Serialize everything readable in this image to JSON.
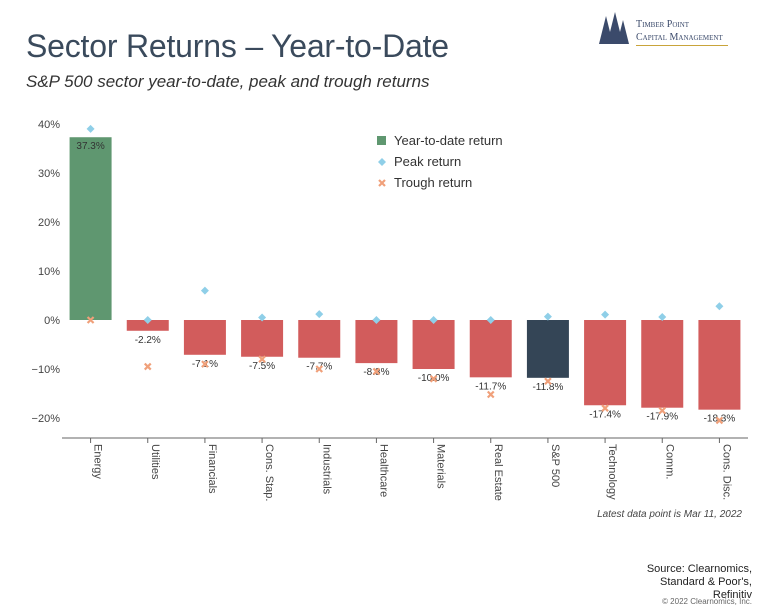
{
  "header": {
    "title": "Sector Returns – Year-to-Date",
    "subtitle": "S&P 500 sector year-to-date, peak and trough returns"
  },
  "logo": {
    "line1": "Timber Point",
    "line2": "Capital Management",
    "icon": "pine-trees-icon"
  },
  "footer": {
    "note": "Latest data point is Mar 11, 2022",
    "source_line1": "Source: Clearnomics,",
    "source_line2": "Standard & Poor's,",
    "source_line3": "Refinitiv",
    "copyright": "© 2022 Clearnomics, Inc."
  },
  "colors": {
    "positive": "#5f9770",
    "negative": "#d25c5c",
    "index": "#344556",
    "peak": "#8fcfe8",
    "trough": "#f0a07a"
  },
  "chart_data": {
    "type": "bar",
    "categories": [
      "Energy",
      "Utilities",
      "Financials",
      "Cons. Stap.",
      "Industrials",
      "Healthcare",
      "Materials",
      "Real Estate",
      "S&P 500",
      "Technology",
      "Comm.",
      "Cons. Disc."
    ],
    "series": [
      {
        "name": "Year-to-date return",
        "values": [
          37.3,
          -2.2,
          -7.1,
          -7.5,
          -7.7,
          -8.8,
          -10.0,
          -11.7,
          -11.8,
          -17.4,
          -17.9,
          -18.3
        ]
      },
      {
        "name": "Peak return",
        "values": [
          39.0,
          0.0,
          6.0,
          0.5,
          1.2,
          0.0,
          0.0,
          0.0,
          0.7,
          1.1,
          0.6,
          2.8
        ]
      },
      {
        "name": "Trough return",
        "values": [
          0.0,
          -9.5,
          -9.0,
          -8.0,
          -10.0,
          -10.5,
          -12.0,
          -15.2,
          -12.5,
          -18.0,
          -18.5,
          -20.5
        ]
      }
    ],
    "data_labels": [
      "37.3%",
      "-2.2%",
      "-7.1%",
      "-7.5%",
      "-7.7%",
      "-8.8%",
      "-10.0%",
      "-11.7%",
      "-11.8%",
      "-17.4%",
      "-17.9%",
      "-18.3%"
    ],
    "y_ticks": [
      40,
      30,
      20,
      10,
      0,
      -10,
      -20
    ],
    "y_tick_labels": [
      "40%",
      "30%",
      "20%",
      "10%",
      "0%",
      "−10%",
      "−20%"
    ],
    "ylim": [
      -24.5,
      41
    ],
    "legend_position": "top-center",
    "grid": false
  }
}
